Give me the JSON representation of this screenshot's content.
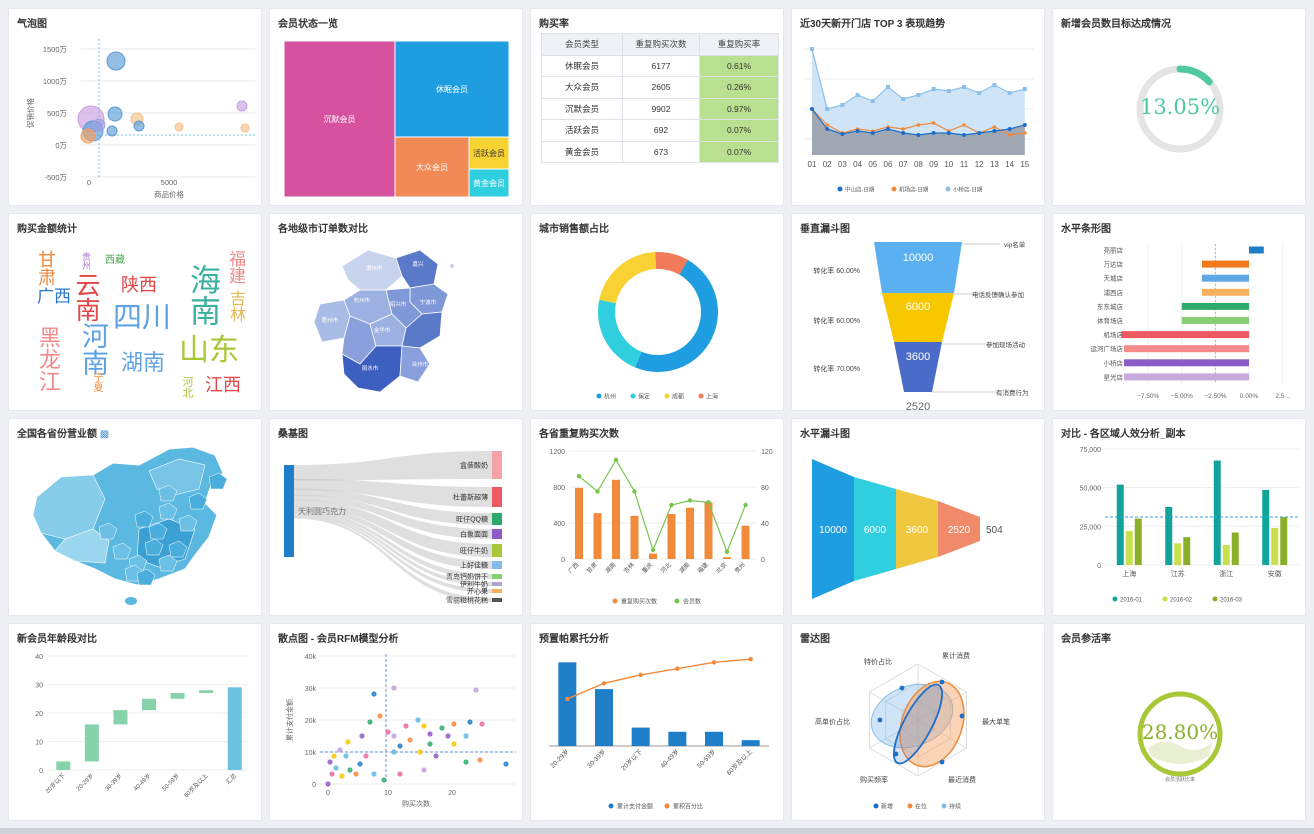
{
  "charts": {
    "bubble": {
      "title": "气泡图",
      "xlabel": "商品价格",
      "ylabel": "促销价格",
      "yticks": [
        "1500万",
        "1000万",
        "500万",
        "0万",
        "-500万"
      ],
      "xticks": [
        "0",
        "5000"
      ]
    },
    "treemap": {
      "title": "会员状态一览",
      "items": [
        {
          "name": "沉默会员",
          "color": "#d6519e"
        },
        {
          "name": "休眠会员",
          "color": "#1e9ee0"
        },
        {
          "name": "大众会员",
          "color": "#f28a55"
        },
        {
          "name": "活跃会员",
          "color": "#f7d232"
        },
        {
          "name": "黄金会员",
          "color": "#30cfdf"
        }
      ]
    },
    "repurchase": {
      "title": "购买率",
      "headers": [
        "会员类型",
        "重复购买次数",
        "重复购买率"
      ],
      "rows": [
        [
          "休眠会员",
          "6177",
          "0.61%"
        ],
        [
          "大众会员",
          "2605",
          "0.26%"
        ],
        [
          "沉默会员",
          "9902",
          "0.97%"
        ],
        [
          "活跃会员",
          "692",
          "0.07%"
        ],
        [
          "黄金会员",
          "673",
          "0.07%"
        ]
      ]
    },
    "trend": {
      "title": "近30天新开门店 TOP 3 表现趋势",
      "x": [
        "01",
        "02",
        "03",
        "04",
        "05",
        "06",
        "07",
        "08",
        "09",
        "10",
        "11",
        "12",
        "13",
        "14",
        "15"
      ],
      "legend": [
        "中山店-日期",
        "机场店-日期",
        "小桥店-日期"
      ]
    },
    "gauge1": {
      "title": "新增会员数目标达成情况",
      "value": "13.05%"
    },
    "wordcloud": {
      "title": "购买金额统计",
      "words": [
        {
          "t": "甘肃",
          "c": "#f08a3c",
          "s": 18,
          "x": 28,
          "y": 36,
          "v": 1
        },
        {
          "t": "贵州",
          "c": "#b17ac9",
          "s": 9,
          "x": 72,
          "y": 38,
          "v": 1
        },
        {
          "t": "西藏",
          "c": "#4aa64c",
          "s": 10,
          "x": 96,
          "y": 42,
          "h": 1
        },
        {
          "t": "云南",
          "c": "#e04646",
          "s": 25,
          "x": 64,
          "y": 58,
          "v": 1
        },
        {
          "t": "陕西",
          "c": "#e04646",
          "s": 18,
          "x": 112,
          "y": 62,
          "h": 1
        },
        {
          "t": "广西",
          "c": "#2976c9",
          "s": 17,
          "x": 28,
          "y": 74,
          "h": 1
        },
        {
          "t": "四川",
          "c": "#5fa3e4",
          "s": 29,
          "x": 104,
          "y": 90,
          "h": 1
        },
        {
          "t": "河南",
          "c": "#5fa3e4",
          "s": 27,
          "x": 70,
          "y": 108,
          "v": 1
        },
        {
          "t": "黑龙江",
          "c": "#f08a8a",
          "s": 22,
          "x": 28,
          "y": 112,
          "v": 1
        },
        {
          "t": "湖南",
          "c": "#5fa3e4",
          "s": 22,
          "x": 112,
          "y": 138,
          "h": 1
        },
        {
          "t": "宁夏",
          "c": "#f08a3c",
          "s": 10,
          "x": 82,
          "y": 158,
          "v": 1
        },
        {
          "t": "海南",
          "c": "#3cb0a0",
          "s": 31,
          "x": 178,
          "y": 50,
          "v": 1
        },
        {
          "t": "福建",
          "c": "#f08a8a",
          "s": 17,
          "x": 218,
          "y": 36,
          "v": 1
        },
        {
          "t": "吉林",
          "c": "#e8b64c",
          "s": 16,
          "x": 218,
          "y": 76,
          "v": 1
        },
        {
          "t": "山东",
          "c": "#a8c838",
          "s": 30,
          "x": 170,
          "y": 122,
          "h": 1
        },
        {
          "t": "江西",
          "c": "#e04646",
          "s": 18,
          "x": 196,
          "y": 162,
          "h": 1
        },
        {
          "t": "河北",
          "c": "#a8c838",
          "s": 11,
          "x": 172,
          "y": 162,
          "v": 1
        }
      ]
    },
    "citymap": {
      "title": "各地级市订单数对比"
    },
    "donut": {
      "title": "城市销售额占比",
      "slices": [
        {
          "name": "杭州",
          "value": 48,
          "color": "#1e9ee0"
        },
        {
          "name": "保定",
          "value": 22,
          "color": "#30cfdf"
        },
        {
          "name": "成都",
          "value": 21,
          "color": "#f7d232"
        },
        {
          "name": "上海",
          "value": 9,
          "color": "#f07a5a"
        }
      ]
    },
    "vfunnel": {
      "title": "垂直漏斗图",
      "values": [
        "10000",
        "6000",
        "3600",
        "2520"
      ],
      "rates": [
        "转化率 60.00%",
        "转化率 60.00%",
        "转化率 70.00%"
      ],
      "labels": [
        "vip名单",
        "电话反馈确认参加",
        "参加现场活动",
        "有消费行为"
      ]
    },
    "hbar": {
      "title": "水平条形图",
      "categories": [
        "亮丽店",
        "万达店",
        "天城店",
        "浦西店",
        "东东城店",
        "体育场店",
        "机场店",
        "运河广场店",
        "小桥店",
        "星光店"
      ],
      "values": [
        1.1,
        -3.5,
        -3.5,
        -3.5,
        -5.0,
        -5.0,
        -9.5,
        -9.3,
        -9.3,
        -9.3
      ],
      "colors": [
        "#1e7ec8",
        "#f07a1a",
        "#5fa8e8",
        "#f6b060",
        "#2daa6a",
        "#86cf72",
        "#ee5a62",
        "#f48a8a",
        "#8e5cc8",
        "#c9a8dc"
      ],
      "xticks": [
        "−7.50%",
        "−5.00%",
        "−2.50%",
        "0.00%",
        "2.5..."
      ]
    },
    "chinamap": {
      "title": "全国各省份营业额"
    },
    "sankey": {
      "title": "桑基图",
      "source": "天利圆巧克力",
      "targets": [
        {
          "name": "盒装酸奶",
          "color": "#f5a3a7"
        },
        {
          "name": "杜蕾斯超薄",
          "color": "#ee5a62"
        },
        {
          "name": "旺仔QQ糖",
          "color": "#2daa6a"
        },
        {
          "name": "白象面面",
          "color": "#8e5cc8"
        },
        {
          "name": "旺仔牛奶",
          "color": "#a8c838"
        },
        {
          "name": "上好佳糖",
          "color": "#86bbe8"
        },
        {
          "name": "青岛钙奶饼干",
          "color": "#86cf72"
        },
        {
          "name": "伊利牛奶",
          "color": "#b0a0d0"
        },
        {
          "name": "开心果",
          "color": "#f6b060"
        },
        {
          "name": "雪丽糍桃花糕",
          "color": "#555555"
        }
      ]
    },
    "combo": {
      "title": "各省重复购买次数",
      "categories": [
        "广西",
        "甘肃",
        "湖南",
        "吉林",
        "重庆",
        "河北",
        "湖南",
        "福建",
        "北京",
        "贵州"
      ],
      "bars": [
        790,
        510,
        880,
        480,
        60,
        500,
        570,
        630,
        20,
        370
      ],
      "line": [
        92,
        75,
        110,
        75,
        10,
        60,
        65,
        63,
        8,
        60
      ],
      "yleft": [
        "1200",
        "800",
        "400",
        "0"
      ],
      "yright": [
        "120",
        "80",
        "40",
        "0"
      ],
      "legend": [
        "重复购买次数",
        "会员数"
      ]
    },
    "hfunnel": {
      "title": "水平漏斗图",
      "values": [
        "10000",
        "6000",
        "3600",
        "2520",
        "504"
      ]
    },
    "groupbar": {
      "title": "对比 - 各区域人效分析_副本",
      "categories": [
        "上海",
        "江苏",
        "浙江",
        "安徽"
      ],
      "series": [
        {
          "name": "2016-01",
          "color": "#12a39a",
          "values": [
            52000,
            37500,
            67500,
            48500
          ]
        },
        {
          "name": "2016-02",
          "color": "#c8e04c",
          "values": [
            22000,
            14000,
            13000,
            24000
          ]
        },
        {
          "name": "2016-03",
          "color": "#8ab02a",
          "values": [
            30000,
            18000,
            21000,
            31000
          ]
        }
      ],
      "yticks": [
        "75,000",
        "50,000",
        "25,000",
        "0"
      ]
    },
    "waterfall": {
      "title": "新会员年龄段对比",
      "categories": [
        "20岁以下",
        "20-29岁",
        "30-39岁",
        "40-49岁",
        "50-59岁",
        "60岁及以上",
        "汇总"
      ],
      "values": [
        3,
        13,
        5,
        4,
        2,
        1,
        29
      ],
      "yticks": [
        "40",
        "30",
        "20",
        "10",
        "0"
      ]
    },
    "scatter": {
      "title": "散点图 - 会员RFM模型分析",
      "xlabel": "购买次数",
      "ylabel": "累计支付金额",
      "yticks": [
        "40k",
        "30k",
        "20k",
        "10k",
        "0"
      ],
      "xticks": [
        "0",
        "10",
        "20"
      ]
    },
    "pareto": {
      "title": "预置帕累托分析",
      "categories": [
        "20-29岁",
        "30-39岁",
        "20岁以下",
        "40-49岁",
        "50-59岁",
        "60岁及以上"
      ],
      "bars": [
        100,
        68,
        22,
        17,
        17,
        7
      ],
      "line": [
        45,
        60,
        68,
        74,
        80,
        83
      ],
      "legend": [
        "累计支付金额",
        "累积百分比"
      ]
    },
    "radar": {
      "title": "雷达图",
      "axes": [
        "特价占比",
        "累计消费",
        "最大单笔",
        "最近消费",
        "购买频率",
        "高单价占比"
      ],
      "legend": [
        "新增",
        "在位",
        "持续"
      ]
    },
    "gauge2": {
      "title": "会员参活率",
      "value": "28.80%",
      "sub": "会员活跃比率"
    }
  }
}
